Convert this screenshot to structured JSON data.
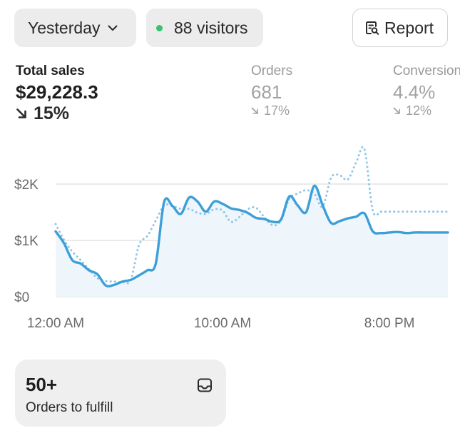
{
  "toolbar": {
    "date_label": "Yesterday",
    "visitors_label": "88 visitors",
    "report_label": "Report",
    "visitors_dot_color": "#35c46e"
  },
  "metrics": [
    {
      "label": "Total sales",
      "value": "$29,228.3",
      "delta": "15%",
      "direction": "down"
    },
    {
      "label": "Orders",
      "value": "681",
      "delta": "17%",
      "direction": "down"
    },
    {
      "label": "Conversion",
      "value": "4.4%",
      "delta": "12%",
      "direction": "down"
    }
  ],
  "chart_data": {
    "type": "line",
    "x": [
      0,
      0.5,
      1,
      1.5,
      2,
      2.5,
      3,
      3.5,
      4,
      4.5,
      5,
      5.5,
      6,
      6.5,
      7,
      7.5,
      8,
      8.5,
      9,
      9.5,
      10,
      10.5,
      11,
      11.5,
      12,
      12.5,
      13,
      13.5,
      14,
      14.5,
      15,
      15.5,
      16,
      16.5,
      17,
      17.5,
      18,
      18.5,
      19,
      19.5,
      20,
      20.5,
      21,
      21.5,
      22,
      22.5,
      23,
      23.5
    ],
    "xlabel": "",
    "ylabel": "",
    "xticks": [
      "12:00 AM",
      "10:00 AM",
      "8:00 PM"
    ],
    "yticks": [
      "$0",
      "$1K",
      "$2K"
    ],
    "ylim": [
      0,
      2650
    ],
    "xlim": [
      0,
      23.5
    ],
    "grid": true,
    "series": [
      {
        "style": "solid",
        "color": "#3d9fd9",
        "values": [
          1160,
          950,
          650,
          590,
          470,
          400,
          200,
          210,
          270,
          300,
          380,
          470,
          590,
          1680,
          1610,
          1470,
          1760,
          1690,
          1510,
          1690,
          1650,
          1570,
          1540,
          1490,
          1400,
          1380,
          1330,
          1370,
          1780,
          1620,
          1500,
          1970,
          1620,
          1310,
          1340,
          1390,
          1420,
          1480,
          1160,
          1130,
          1140,
          1150,
          1130,
          1140,
          1140,
          1140,
          1140,
          1140
        ]
      },
      {
        "style": "dotted",
        "color": "#8ec6e6",
        "values": [
          1290,
          1010,
          800,
          650,
          490,
          330,
          280,
          270,
          260,
          300,
          920,
          1080,
          1350,
          1620,
          1610,
          1560,
          1560,
          1490,
          1470,
          1550,
          1530,
          1330,
          1410,
          1550,
          1580,
          1410,
          1270,
          1350,
          1740,
          1830,
          1890,
          1830,
          1600,
          2110,
          2160,
          2080,
          2380,
          2620,
          1530,
          1510,
          1510,
          1510,
          1510,
          1510,
          1510,
          1510,
          1510,
          1510
        ]
      }
    ]
  },
  "fulfill_card": {
    "count": "50+",
    "label": "Orders to fulfill"
  }
}
